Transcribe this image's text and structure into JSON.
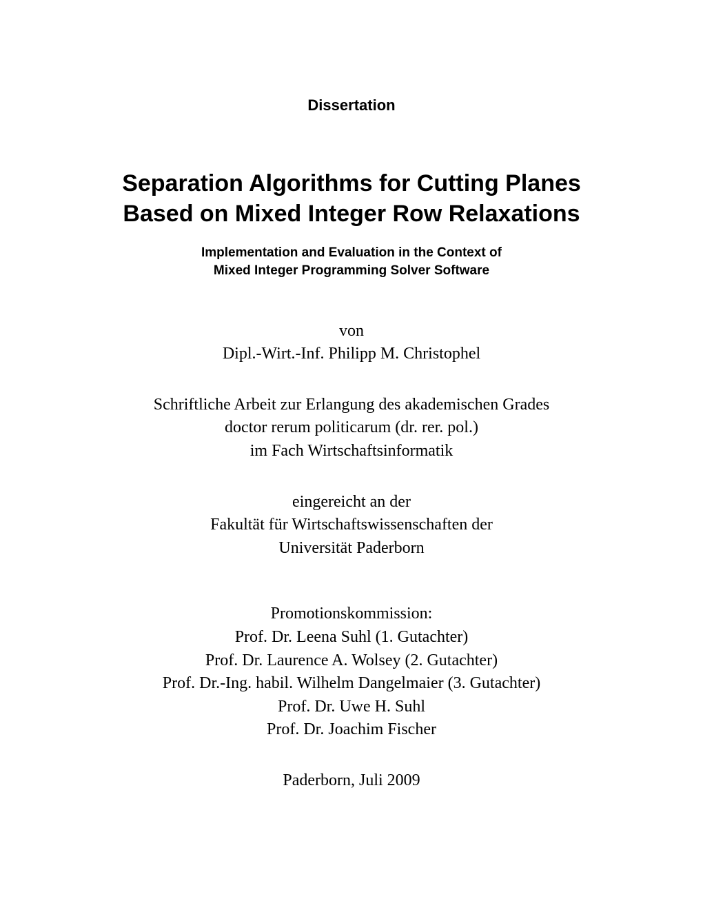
{
  "document_type": "Dissertation",
  "title_line1": "Separation Algorithms for Cutting Planes",
  "title_line2": "Based on Mixed Integer Row Relaxations",
  "subtitle_line1": "Implementation and Evaluation in the Context of",
  "subtitle_line2": "Mixed Integer Programming Solver Software",
  "author": {
    "von": "von",
    "name": "Dipl.-Wirt.-Inf. Philipp M. Christophel"
  },
  "degree": {
    "line1": "Schriftliche Arbeit zur Erlangung des akademischen Grades",
    "line2": "doctor rerum politicarum (dr. rer. pol.)",
    "line3": "im Fach Wirtschaftsinformatik"
  },
  "faculty": {
    "line1": "eingereicht an der",
    "line2": "Fakultät für Wirtschaftswissenschaften der",
    "line3": "Universität Paderborn"
  },
  "committee": {
    "heading": "Promotionskommission:",
    "member1": "Prof. Dr. Leena Suhl (1. Gutachter)",
    "member2": "Prof. Dr. Laurence A. Wolsey (2. Gutachter)",
    "member3": "Prof. Dr.-Ing. habil. Wilhelm Dangelmaier (3. Gutachter)",
    "member4": "Prof. Dr. Uwe H. Suhl",
    "member5": "Prof. Dr. Joachim Fischer"
  },
  "date": "Paderborn, Juli 2009"
}
